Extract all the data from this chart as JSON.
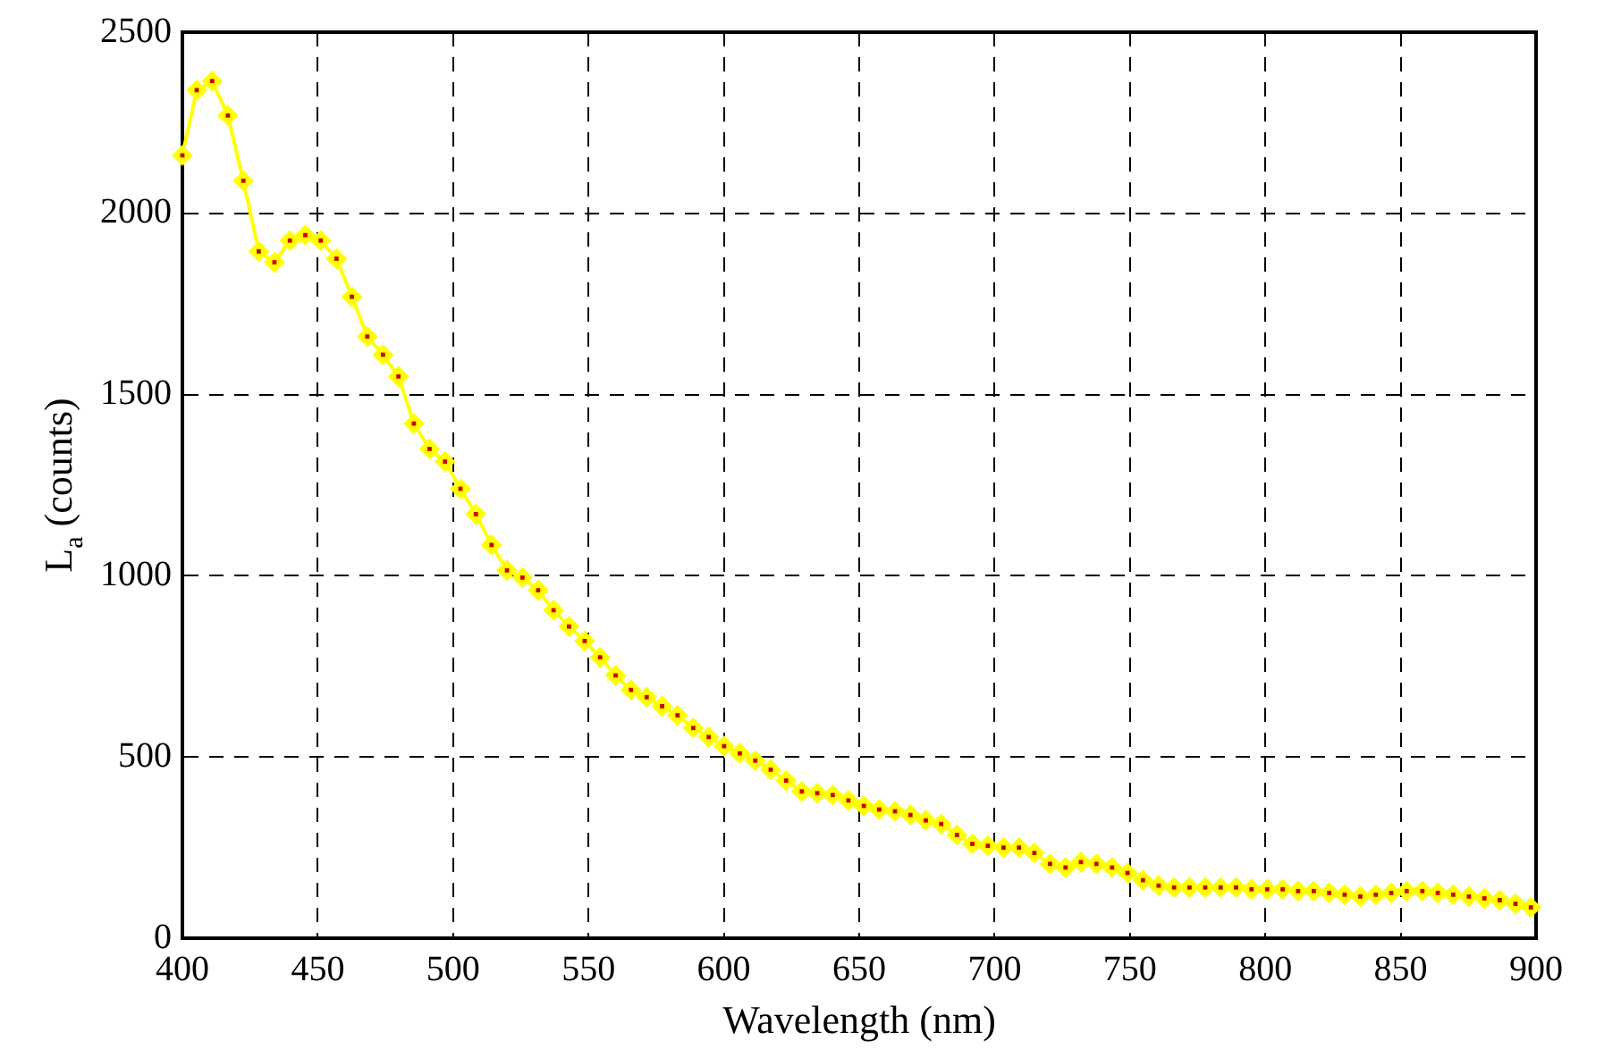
{
  "chart_data": {
    "type": "line",
    "xlabel": "Wavelength (nm)",
    "ylabel": "L$_{a}$ (counts)",
    "xlim": [
      400,
      900
    ],
    "xticks": [
      400,
      450,
      500,
      550,
      600,
      650,
      700,
      750,
      800,
      850,
      900
    ],
    "ylim": [
      0,
      2500
    ],
    "yticks": [
      0,
      500,
      1000,
      1500,
      2000,
      2500
    ],
    "grid": true,
    "marker": "diamond",
    "line_style": "solid",
    "series": [
      {
        "color": "#ffff00",
        "x": [
          400,
          405.3,
          411.0,
          416.8,
          422.5,
          428.2,
          434.0,
          439.7,
          445.4,
          451.1,
          456.9,
          462.6,
          468.3,
          474.1,
          479.8,
          485.5,
          491.3,
          497.0,
          502.7,
          508.4,
          514.2,
          519.9,
          525.6,
          531.4,
          537.1,
          542.8,
          548.6,
          554.3,
          560.0,
          565.7,
          571.5,
          577.2,
          582.9,
          588.7,
          594.4,
          600.1,
          605.9,
          611.6,
          617.3,
          623.0,
          628.8,
          634.5,
          640.2,
          646.0,
          651.7,
          657.4,
          663.2,
          668.9,
          674.6,
          680.3,
          686.1,
          691.8,
          697.5,
          703.3,
          709.0,
          714.7,
          720.5,
          726.2,
          731.9,
          737.6,
          743.4,
          749.1,
          754.8,
          760.6,
          766.3,
          772.0,
          777.8,
          783.5,
          789.2,
          794.9,
          800.7,
          806.4,
          812.1,
          817.9,
          823.6,
          829.3,
          835.1,
          840.8,
          846.5,
          852.2,
          858.0,
          863.7,
          869.4,
          875.2,
          880.9,
          886.6,
          892.4,
          898.1
        ],
        "values": [
          2160,
          2340,
          2365,
          2270,
          2090,
          1895,
          1865,
          1925,
          1940,
          1925,
          1875,
          1770,
          1660,
          1610,
          1550,
          1420,
          1350,
          1315,
          1240,
          1170,
          1085,
          1015,
          995,
          960,
          905,
          860,
          820,
          775,
          725,
          685,
          665,
          640,
          615,
          580,
          555,
          530,
          510,
          490,
          465,
          435,
          405,
          400,
          395,
          380,
          365,
          355,
          350,
          340,
          325,
          315,
          285,
          260,
          255,
          250,
          250,
          235,
          205,
          195,
          210,
          205,
          195,
          180,
          160,
          145,
          140,
          140,
          140,
          140,
          140,
          135,
          135,
          135,
          130,
          130,
          125,
          120,
          115,
          120,
          125,
          130,
          130,
          125,
          120,
          115,
          110,
          105,
          95,
          85
        ]
      }
    ]
  }
}
